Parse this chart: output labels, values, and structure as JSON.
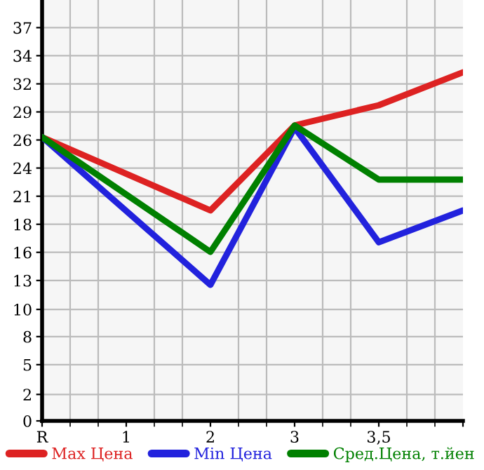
{
  "chart_data": {
    "type": "line",
    "categories": [
      "R",
      "1",
      "2",
      "3",
      "3,5",
      null
    ],
    "series": [
      {
        "name": "Max Цена",
        "color": "#dd2222",
        "values": [
          26.7,
          null,
          19.8,
          27.8,
          29.7,
          32.8
        ]
      },
      {
        "name": "Min Цена",
        "color": "#2222dd",
        "values": [
          26.7,
          null,
          12.8,
          27.6,
          16.8,
          19.8
        ]
      },
      {
        "name": "Сред.Цена, т.йен",
        "color": "#008000",
        "values": [
          26.7,
          null,
          15.9,
          27.8,
          22.7,
          22.7
        ]
      }
    ],
    "ylim": [
      0,
      39.6
    ],
    "yticks": [
      0,
      {
        "value": 2.49,
        "label": "2"
      },
      {
        "value": 5.29,
        "label": "5"
      },
      {
        "value": 7.93,
        "label": "8"
      },
      {
        "value": 10.49,
        "label": "10"
      },
      {
        "value": 13.21,
        "label": "13"
      },
      {
        "value": 15.86,
        "label": "16"
      },
      {
        "value": 18.5,
        "label": "18"
      },
      {
        "value": 21.14,
        "label": "21"
      },
      {
        "value": 23.79,
        "label": "24"
      },
      {
        "value": 26.43,
        "label": "26"
      },
      {
        "value": 29.07,
        "label": "29"
      },
      {
        "value": 31.71,
        "label": "32"
      },
      {
        "value": 34.36,
        "label": "34"
      },
      37
    ],
    "grid": true,
    "legend": "bottom",
    "marker": "none",
    "line_style": "solid"
  }
}
